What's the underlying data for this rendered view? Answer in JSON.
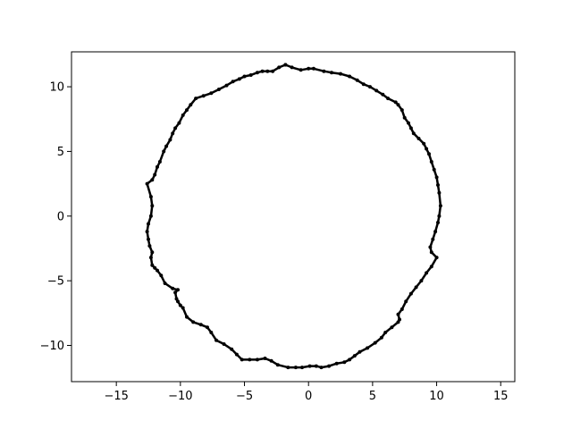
{
  "chart_data": {
    "type": "scatter",
    "title": "",
    "xlabel": "",
    "ylabel": "",
    "xlim": [
      -18.5,
      16.1
    ],
    "ylim": [
      -12.8,
      12.7
    ],
    "xticks": [
      -15,
      -10,
      -5,
      0,
      5,
      10,
      15
    ],
    "yticks": [
      -10,
      -5,
      0,
      5,
      10
    ],
    "xtick_labels": [
      "−15",
      "−10",
      "−5",
      "0",
      "5",
      "10",
      "15"
    ],
    "ytick_labels": [
      "−10",
      "−5",
      "0",
      "5",
      "10"
    ],
    "grid": false,
    "legend": "none",
    "marker_color": "#000000",
    "series": [
      {
        "x": [
          -1.8,
          -1.3,
          -0.6,
          0.0,
          0.4,
          1.2,
          1.8,
          2.5,
          3.2,
          3.8,
          4.3,
          4.8,
          5.3,
          5.8,
          6.2,
          6.8,
          7.0,
          7.3,
          7.5,
          7.8,
          8.0,
          8.2,
          8.6,
          9.0,
          9.2,
          9.4,
          9.6,
          9.8,
          10.0,
          10.1,
          10.2,
          10.3,
          10.2,
          10.1,
          9.9,
          9.7,
          9.5,
          9.6,
          10.0,
          9.6,
          9.2,
          8.8,
          8.4,
          8.0,
          7.6,
          7.3,
          7.0,
          7.1,
          7.0,
          6.5,
          6.0,
          5.7,
          5.2,
          4.6,
          4.0,
          3.6,
          3.2,
          2.8,
          2.2,
          1.6,
          1.0,
          0.6,
          0.1,
          -0.5,
          -1.0,
          -1.6,
          -2.4,
          -2.9,
          -3.4,
          -4.0,
          -4.6,
          -5.2,
          -5.6,
          -6.0,
          -6.6,
          -7.2,
          -7.6,
          -7.9,
          -8.4,
          -9.0,
          -9.5,
          -9.8,
          -10.0,
          -10.2,
          -10.3,
          -10.4,
          -10.2,
          -10.6,
          -11.2,
          -11.5,
          -11.8,
          -12.0,
          -12.2,
          -12.3,
          -12.2,
          -12.4,
          -12.5,
          -12.6,
          -12.5,
          -12.3,
          -12.2,
          -12.3,
          -12.6,
          -12.2,
          -12.0,
          -11.8,
          -11.6,
          -11.3,
          -11.1,
          -10.8,
          -10.6,
          -10.4,
          -10.1,
          -9.8,
          -9.5,
          -9.2,
          -8.8,
          -8.2,
          -7.6,
          -7.0,
          -6.4,
          -5.9,
          -5.4,
          -5.0,
          -4.5,
          -4.0,
          -3.6,
          -3.2,
          -2.8,
          -2.3,
          -1.8
        ],
        "y": [
          11.7,
          11.5,
          11.3,
          11.4,
          11.4,
          11.2,
          11.1,
          11.0,
          10.8,
          10.5,
          10.2,
          10.0,
          9.7,
          9.4,
          9.1,
          8.8,
          8.6,
          8.2,
          7.6,
          7.2,
          6.8,
          6.4,
          6.0,
          5.6,
          5.2,
          4.8,
          4.2,
          3.6,
          3.0,
          2.4,
          1.8,
          0.8,
          0.0,
          -0.5,
          -1.2,
          -1.8,
          -2.4,
          -2.8,
          -3.2,
          -3.9,
          -4.4,
          -5.0,
          -5.5,
          -6.0,
          -6.6,
          -7.2,
          -7.6,
          -8.0,
          -8.2,
          -8.6,
          -9.0,
          -9.4,
          -9.8,
          -10.2,
          -10.5,
          -10.8,
          -11.1,
          -11.3,
          -11.4,
          -11.6,
          -11.7,
          -11.6,
          -11.6,
          -11.7,
          -11.7,
          -11.7,
          -11.5,
          -11.2,
          -11.0,
          -11.1,
          -11.1,
          -11.1,
          -10.7,
          -10.3,
          -9.9,
          -9.6,
          -9.0,
          -8.6,
          -8.4,
          -8.2,
          -7.8,
          -7.1,
          -6.9,
          -6.6,
          -6.4,
          -5.9,
          -5.7,
          -5.6,
          -5.2,
          -4.6,
          -4.2,
          -4.0,
          -3.8,
          -3.2,
          -2.8,
          -2.3,
          -1.8,
          -1.2,
          -0.6,
          0.0,
          0.8,
          1.5,
          2.5,
          2.8,
          3.2,
          3.8,
          4.2,
          5.0,
          5.4,
          5.9,
          6.4,
          6.8,
          7.2,
          7.8,
          8.2,
          8.6,
          9.1,
          9.3,
          9.5,
          9.8,
          10.1,
          10.4,
          10.6,
          10.8,
          10.9,
          11.1,
          11.2,
          11.2,
          11.2,
          11.5,
          11.7
        ]
      }
    ]
  }
}
